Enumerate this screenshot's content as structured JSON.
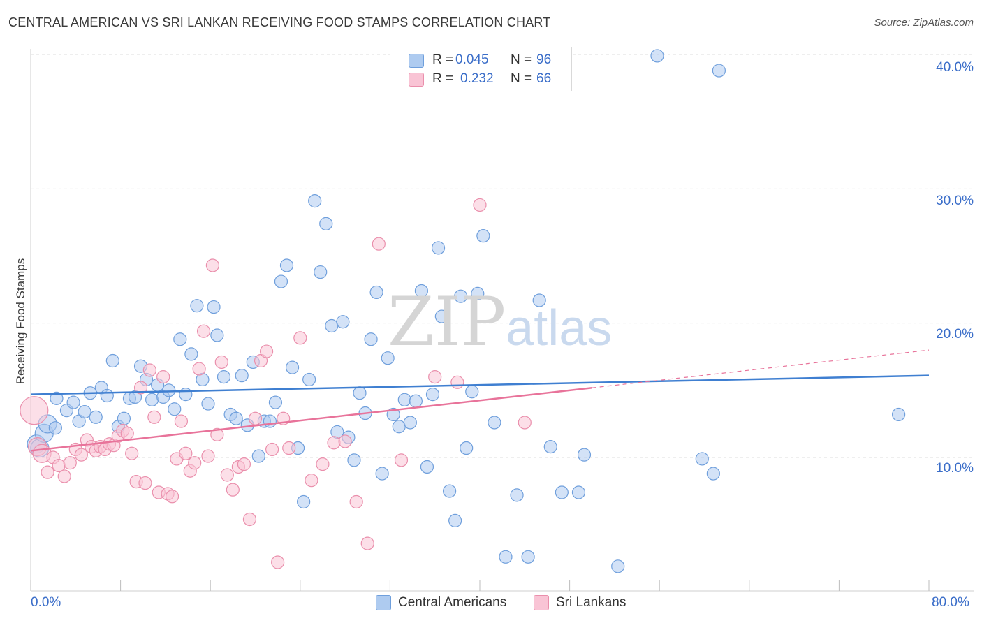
{
  "title": "CENTRAL AMERICAN VS SRI LANKAN RECEIVING FOOD STAMPS CORRELATION CHART",
  "source": "Source: ZipAtlas.com",
  "watermark": {
    "zip": "ZIP",
    "atlas": "atlas"
  },
  "legend_top": {
    "rows": [
      {
        "r_label": "R =",
        "r_value": "0.045",
        "n_label": "N =",
        "n_value": "96",
        "color": "#aecbf0",
        "border": "#6f9fdc"
      },
      {
        "r_label": "R =",
        "r_value": "0.232",
        "n_label": "N =",
        "n_value": "66",
        "color": "#f9c4d5",
        "border": "#ea8fac"
      }
    ]
  },
  "legend_bottom": [
    {
      "label": "Central Americans",
      "color": "#aecbf0",
      "border": "#6f9fdc"
    },
    {
      "label": "Sri Lankans",
      "color": "#f9c4d5",
      "border": "#ea8fac"
    }
  ],
  "x_tick_labels": {
    "min": "0.0%",
    "max": "80.0%"
  },
  "y_tick_labels": [
    "10.0%",
    "20.0%",
    "30.0%",
    "40.0%"
  ],
  "chart_data": {
    "type": "scatter",
    "title": "CENTRAL AMERICAN VS SRI LANKAN RECEIVING FOOD STAMPS CORRELATION CHART",
    "xlabel": "",
    "ylabel": "Receiving Food Stamps",
    "xlim": [
      0,
      80
    ],
    "ylim": [
      0,
      42
    ],
    "y_ticks": [
      10,
      20,
      30,
      40
    ],
    "grid": true,
    "legend": "top-center",
    "colors": {
      "blue": "#3f7fd1",
      "pink": "#e8739a",
      "blue_fill": "#aecbf0",
      "pink_fill": "#f9c4d5"
    },
    "series": [
      {
        "name": "Central Americans",
        "color": "#6f9fdc",
        "trend": {
          "x": [
            0,
            80
          ],
          "y": [
            14.7,
            16.1
          ],
          "solid_to": 80
        },
        "points": [
          [
            0.5,
            11.0
          ],
          [
            0.8,
            10.7
          ],
          [
            1.2,
            11.8
          ],
          [
            1.5,
            12.5
          ],
          [
            2.2,
            12.2
          ],
          [
            2.3,
            14.4
          ],
          [
            3.2,
            13.5
          ],
          [
            3.8,
            14.1
          ],
          [
            4.3,
            12.7
          ],
          [
            4.8,
            13.4
          ],
          [
            5.3,
            14.8
          ],
          [
            5.8,
            13.0
          ],
          [
            6.3,
            15.2
          ],
          [
            6.8,
            14.6
          ],
          [
            7.3,
            17.2
          ],
          [
            7.8,
            12.3
          ],
          [
            8.3,
            12.9
          ],
          [
            8.8,
            14.4
          ],
          [
            9.3,
            14.5
          ],
          [
            9.8,
            16.8
          ],
          [
            10.3,
            15.8
          ],
          [
            10.8,
            14.3
          ],
          [
            11.3,
            15.4
          ],
          [
            11.8,
            14.5
          ],
          [
            12.3,
            15.0
          ],
          [
            12.8,
            13.6
          ],
          [
            13.3,
            18.8
          ],
          [
            13.8,
            14.7
          ],
          [
            14.3,
            17.7
          ],
          [
            14.8,
            21.3
          ],
          [
            15.3,
            15.8
          ],
          [
            15.8,
            14.0
          ],
          [
            16.3,
            21.2
          ],
          [
            16.6,
            19.1
          ],
          [
            17.2,
            16.0
          ],
          [
            17.8,
            13.2
          ],
          [
            18.3,
            12.9
          ],
          [
            18.8,
            16.1
          ],
          [
            19.3,
            12.4
          ],
          [
            19.8,
            17.1
          ],
          [
            20.3,
            10.1
          ],
          [
            20.8,
            12.7
          ],
          [
            21.3,
            12.7
          ],
          [
            21.8,
            14.1
          ],
          [
            22.3,
            23.1
          ],
          [
            22.8,
            24.3
          ],
          [
            23.3,
            16.7
          ],
          [
            23.8,
            10.7
          ],
          [
            24.3,
            6.7
          ],
          [
            24.8,
            15.8
          ],
          [
            25.3,
            29.1
          ],
          [
            25.8,
            23.8
          ],
          [
            26.3,
            27.4
          ],
          [
            26.8,
            19.8
          ],
          [
            27.3,
            11.9
          ],
          [
            27.8,
            20.1
          ],
          [
            28.3,
            11.5
          ],
          [
            28.8,
            9.8
          ],
          [
            29.3,
            14.8
          ],
          [
            29.8,
            13.3
          ],
          [
            30.3,
            18.8
          ],
          [
            30.8,
            22.3
          ],
          [
            31.3,
            8.8
          ],
          [
            31.8,
            17.4
          ],
          [
            32.3,
            13.2
          ],
          [
            32.8,
            12.3
          ],
          [
            33.3,
            14.3
          ],
          [
            33.8,
            12.6
          ],
          [
            34.3,
            14.2
          ],
          [
            34.8,
            22.4
          ],
          [
            35.3,
            9.3
          ],
          [
            35.8,
            14.7
          ],
          [
            36.3,
            25.6
          ],
          [
            36.6,
            20.5
          ],
          [
            37.3,
            7.5
          ],
          [
            37.8,
            5.3
          ],
          [
            38.3,
            22.0
          ],
          [
            38.8,
            10.7
          ],
          [
            39.3,
            14.9
          ],
          [
            39.8,
            22.2
          ],
          [
            40.3,
            26.5
          ],
          [
            41.3,
            12.6
          ],
          [
            42.3,
            2.6
          ],
          [
            43.3,
            7.2
          ],
          [
            44.3,
            2.6
          ],
          [
            45.3,
            21.7
          ],
          [
            46.3,
            10.8
          ],
          [
            47.3,
            7.4
          ],
          [
            48.8,
            7.4
          ],
          [
            49.3,
            10.2
          ],
          [
            52.3,
            1.9
          ],
          [
            55.8,
            39.9
          ],
          [
            59.8,
            9.9
          ],
          [
            60.8,
            8.8
          ],
          [
            61.3,
            38.8
          ],
          [
            77.3,
            13.2
          ]
        ]
      },
      {
        "name": "Sri Lankans",
        "color": "#ea8fac",
        "trend": {
          "x": [
            0,
            80
          ],
          "y": [
            10.5,
            18.0
          ],
          "solid_to": 50
        },
        "points": [
          [
            0.3,
            13.5
          ],
          [
            0.6,
            10.8
          ],
          [
            1.0,
            10.3
          ],
          [
            1.5,
            8.9
          ],
          [
            2.0,
            10.0
          ],
          [
            2.5,
            9.4
          ],
          [
            3.0,
            8.6
          ],
          [
            3.5,
            9.6
          ],
          [
            4.0,
            10.6
          ],
          [
            4.5,
            10.2
          ],
          [
            5.0,
            11.3
          ],
          [
            5.4,
            10.8
          ],
          [
            5.8,
            10.5
          ],
          [
            6.2,
            10.8
          ],
          [
            6.6,
            10.6
          ],
          [
            7.0,
            11.0
          ],
          [
            7.4,
            10.9
          ],
          [
            7.8,
            11.6
          ],
          [
            8.2,
            12.0
          ],
          [
            8.6,
            11.8
          ],
          [
            9.0,
            10.3
          ],
          [
            9.4,
            8.2
          ],
          [
            9.8,
            15.2
          ],
          [
            10.2,
            8.1
          ],
          [
            10.6,
            16.5
          ],
          [
            11.0,
            13.0
          ],
          [
            11.4,
            7.4
          ],
          [
            11.8,
            16.0
          ],
          [
            12.2,
            7.3
          ],
          [
            12.6,
            7.1
          ],
          [
            13.0,
            9.9
          ],
          [
            13.4,
            12.7
          ],
          [
            13.8,
            10.3
          ],
          [
            14.2,
            9.0
          ],
          [
            14.6,
            9.6
          ],
          [
            15.0,
            16.6
          ],
          [
            15.4,
            19.4
          ],
          [
            15.8,
            10.1
          ],
          [
            16.2,
            24.3
          ],
          [
            16.6,
            11.7
          ],
          [
            17.0,
            17.1
          ],
          [
            17.5,
            8.7
          ],
          [
            18.0,
            7.6
          ],
          [
            18.5,
            9.3
          ],
          [
            19.0,
            9.5
          ],
          [
            19.5,
            5.4
          ],
          [
            20.0,
            12.9
          ],
          [
            20.5,
            17.2
          ],
          [
            21.0,
            17.9
          ],
          [
            21.5,
            10.6
          ],
          [
            22.0,
            2.2
          ],
          [
            22.5,
            12.9
          ],
          [
            23.0,
            10.7
          ],
          [
            24.0,
            18.9
          ],
          [
            25.0,
            8.3
          ],
          [
            26.0,
            9.5
          ],
          [
            27.0,
            11.1
          ],
          [
            28.0,
            11.2
          ],
          [
            29.0,
            6.7
          ],
          [
            30.0,
            3.6
          ],
          [
            31.0,
            25.9
          ],
          [
            33.0,
            9.8
          ],
          [
            36.0,
            16.0
          ],
          [
            38.0,
            15.6
          ],
          [
            40.0,
            28.8
          ],
          [
            44.0,
            12.6
          ]
        ]
      }
    ]
  }
}
